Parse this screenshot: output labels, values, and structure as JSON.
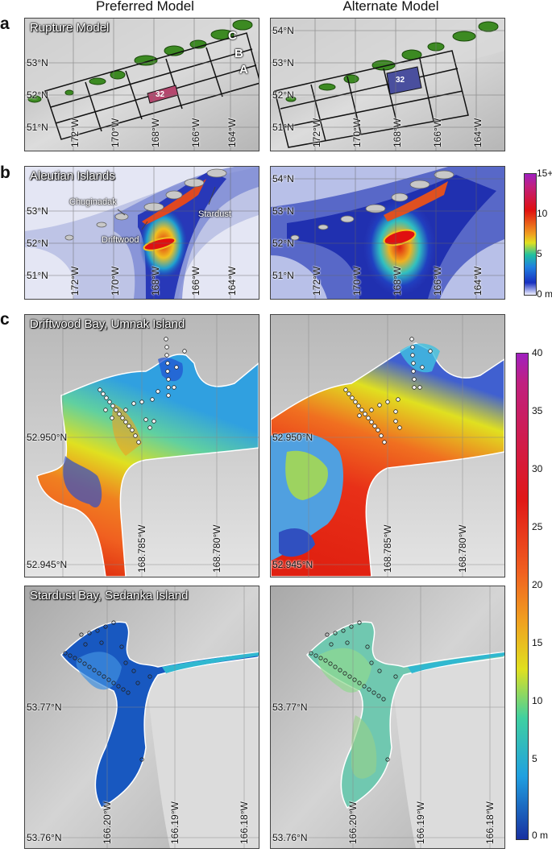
{
  "columns": {
    "left": "Preferred Model",
    "right": "Alternate Model"
  },
  "panel_a": {
    "label": "a",
    "title": "Rupture Model",
    "segments": [
      "C",
      "B",
      "A"
    ],
    "subfault": "32",
    "lats_left": [
      "53°N",
      "52°N",
      "51°N"
    ],
    "lats_right": [
      "54°N",
      "53°N",
      "52°N",
      "51°N"
    ],
    "lons": [
      "172°W",
      "170°W",
      "168°W",
      "166°W",
      "164°W"
    ],
    "colors": {
      "preferred_subfault": "#b5476e",
      "alternate_subfault": "#4a4f9e"
    }
  },
  "panel_b": {
    "label": "b",
    "title": "Aleutian Islands",
    "places": {
      "chuginadak": "Chuginadak",
      "driftwood": "Driftwood",
      "stardust": "Stardust"
    },
    "lats_left": [
      "53°N",
      "52°N",
      "51°N"
    ],
    "lats_right": [
      "54°N",
      "53°N",
      "52°N",
      "51°N"
    ],
    "lons": [
      "172°W",
      "170°W",
      "168°W",
      "166°W",
      "164°W"
    ],
    "colorbar": {
      "max_label": "15+",
      "ticks": [
        "10",
        "5"
      ],
      "min_label": "0 m"
    }
  },
  "panel_c": {
    "label": "c",
    "driftwood": {
      "title": "Driftwood Bay, Umnak Island",
      "lats": [
        "52.950°N",
        "52.945°N"
      ],
      "lons": [
        "168.785°W",
        "168.780°W"
      ]
    },
    "stardust": {
      "title": "Stardust Bay, Sedanka Island",
      "lats": [
        "53.77°N",
        "53.76°N"
      ],
      "lons": [
        "166.20°W",
        "166.19°W",
        "166.18°W"
      ]
    },
    "colorbar": {
      "ticks": [
        "40",
        "35",
        "30",
        "25",
        "20",
        "15",
        "10",
        "5",
        "0 m"
      ]
    }
  }
}
